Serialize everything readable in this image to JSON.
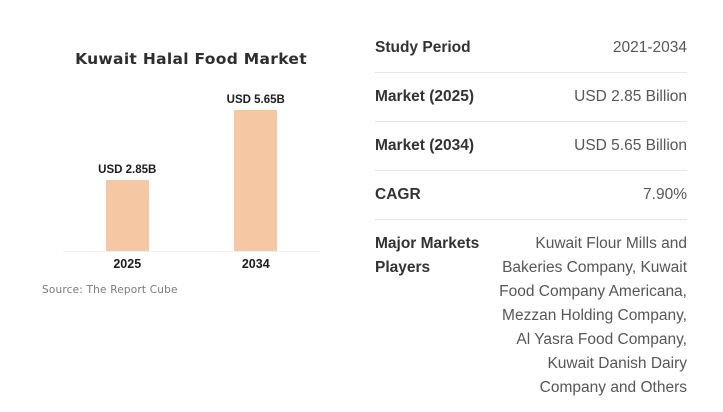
{
  "chart_data": {
    "type": "bar",
    "title": "Kuwait Halal Food Market",
    "categories": [
      "2025",
      "2034"
    ],
    "values": [
      2.85,
      5.65
    ],
    "value_labels": [
      "USD 2.85B",
      "USD 5.65B"
    ],
    "unit": "USD Billion",
    "xlabel": "",
    "ylabel": "",
    "ylim": [
      0,
      5.65
    ],
    "grid": "off",
    "legend": "none",
    "bar_color": "#f5c8a3",
    "source": "Source: The Report Cube"
  },
  "table": {
    "rows": [
      {
        "label": "Study Period",
        "value": "2021-2034"
      },
      {
        "label": "Market (2025)",
        "value": "USD 2.85 Billion"
      },
      {
        "label": "Market (2034)",
        "value": "USD 5.65 Billion"
      },
      {
        "label": "CAGR",
        "value": "7.90%"
      },
      {
        "label": "Major Markets Players",
        "value": "Kuwait Flour Mills and Bakeries Company, Kuwait Food Company Americana, Mezzan Holding Company, Al Yasra Food Company, Kuwait Danish Dairy Company and Others"
      }
    ]
  }
}
